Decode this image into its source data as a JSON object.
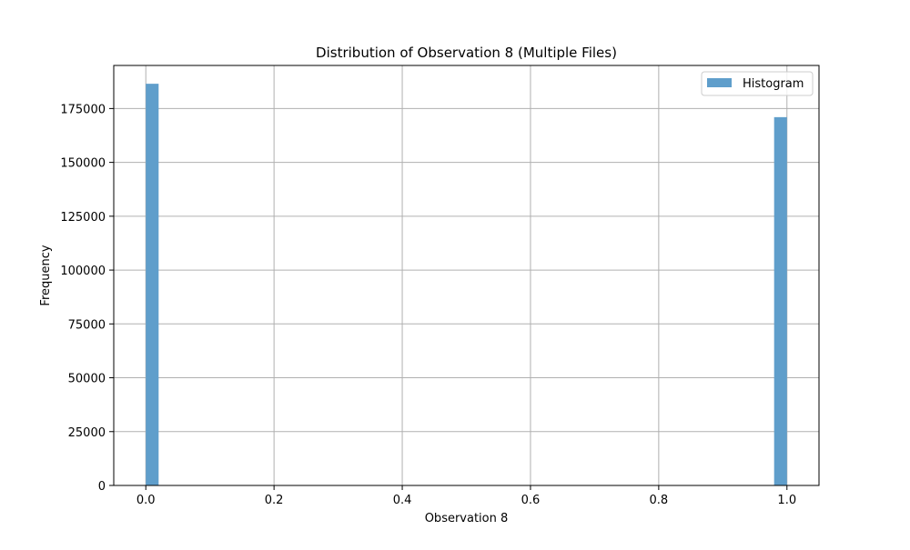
{
  "chart_data": {
    "type": "bar",
    "title": "Distribution of Observation 8 (Multiple Files)",
    "xlabel": "Observation 8",
    "ylabel": "Frequency",
    "xlim": [
      -0.05,
      1.05
    ],
    "ylim": [
      0,
      195000
    ],
    "x_ticks": [
      0.0,
      0.2,
      0.4,
      0.6,
      0.8,
      1.0
    ],
    "x_tick_labels": [
      "0.0",
      "0.2",
      "0.4",
      "0.6",
      "0.8",
      "1.0"
    ],
    "y_ticks": [
      0,
      25000,
      50000,
      75000,
      100000,
      125000,
      150000,
      175000
    ],
    "y_tick_labels": [
      "0",
      "25000",
      "50000",
      "75000",
      "100000",
      "125000",
      "150000",
      "175000"
    ],
    "bins": [
      {
        "x_start": 0.0,
        "x_end": 0.02,
        "value": 186500
      },
      {
        "x_start": 0.98,
        "x_end": 1.0,
        "value": 171000
      }
    ],
    "legend": {
      "position": "top-right",
      "entries": [
        {
          "label": "Histogram",
          "color": "#5f9ecb"
        }
      ]
    },
    "bar_color": "#5f9ecb",
    "grid": true
  }
}
